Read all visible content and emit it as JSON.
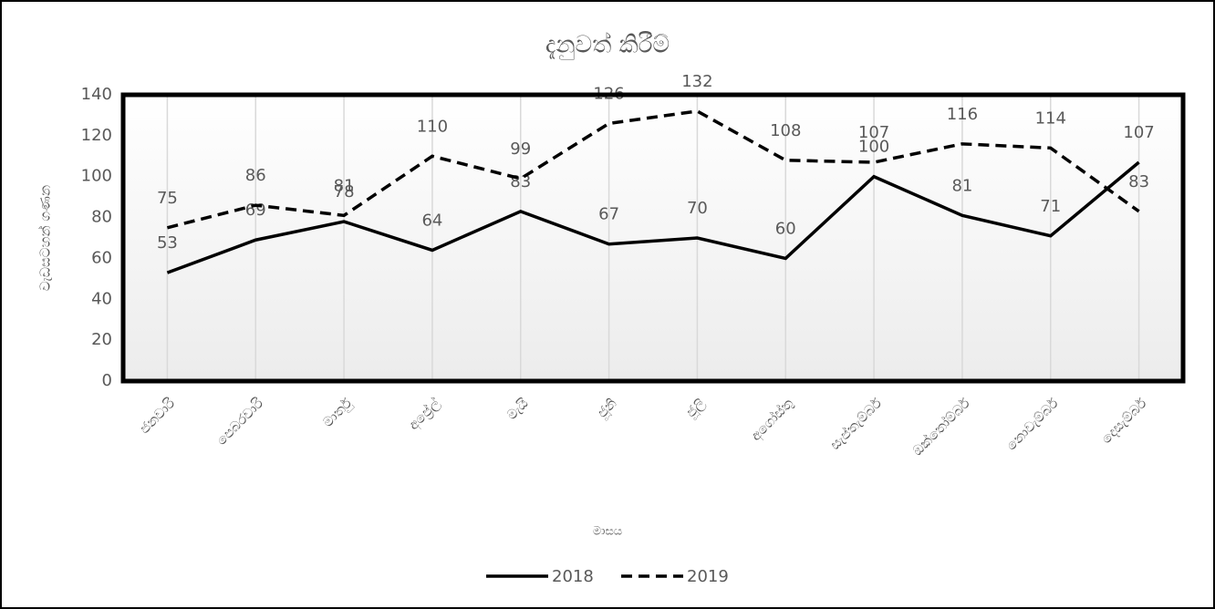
{
  "chart_data": {
    "type": "line",
    "title": "දැනුවත් කිරීම්",
    "x_label": "මාසය",
    "y_label": "වැඩසටහන් ගණන",
    "categories": [
      "ජනවාරි",
      "පෙබරවාරි",
      "මාර්තු",
      "අප්‍රේල්",
      "මැයි",
      "ජූනි",
      "ජූලි",
      "අගෝස්තු",
      "සැප්තැම්බර්",
      "ඔක්තෝම්බර්",
      "නොවැම්බර්",
      "දෙසැම්බර්"
    ],
    "series": [
      {
        "name": "2018",
        "color": "#000000",
        "dash": "solid",
        "values": [
          53,
          69,
          78,
          64,
          83,
          67,
          70,
          60,
          100,
          81,
          71,
          107
        ]
      },
      {
        "name": "2019",
        "color": "#000000",
        "dash": "dashed",
        "values": [
          75,
          86,
          81,
          110,
          99,
          126,
          132,
          108,
          107,
          116,
          114,
          83
        ]
      }
    ],
    "ylim": [
      0,
      140
    ],
    "yticks": [
      0,
      20,
      40,
      60,
      80,
      100,
      120,
      140
    ],
    "grid": "x",
    "legend": "bottom"
  }
}
